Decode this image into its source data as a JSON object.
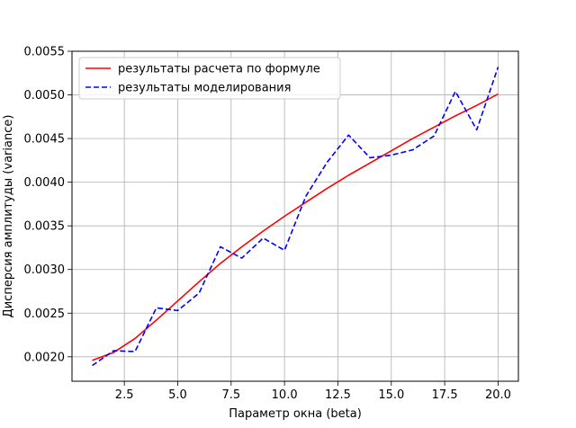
{
  "chart_data": {
    "type": "line",
    "title": "",
    "xlabel": "Параметр окна (beta)",
    "ylabel": "Дисперсия амплитуды (variance)",
    "xlim": [
      0.05,
      20.95
    ],
    "ylim": [
      0.00172,
      0.0055
    ],
    "xticks": [
      2.5,
      5.0,
      7.5,
      10.0,
      12.5,
      15.0,
      17.5,
      20.0
    ],
    "xtick_labels": [
      "2.5",
      "5.0",
      "7.5",
      "10.0",
      "12.5",
      "15.0",
      "17.5",
      "20.0"
    ],
    "yticks": [
      0.002,
      0.0025,
      0.003,
      0.0035,
      0.004,
      0.0045,
      0.005,
      0.0055
    ],
    "ytick_labels": [
      "0.0020",
      "0.0025",
      "0.0030",
      "0.0035",
      "0.0040",
      "0.0045",
      "0.0050",
      "0.0055"
    ],
    "grid": true,
    "legend_position": "top-left",
    "x": [
      1,
      2,
      3,
      4,
      5,
      6,
      7,
      8,
      9,
      10,
      11,
      12,
      13,
      14,
      15,
      16,
      17,
      18,
      19,
      20
    ],
    "series": [
      {
        "name": "результаты расчета по формуле",
        "color": "#ff0000",
        "style": "solid",
        "values": [
          0.00196,
          0.00205,
          0.00221,
          0.00242,
          0.00264,
          0.00286,
          0.00307,
          0.00326,
          0.00344,
          0.00361,
          0.00377,
          0.00393,
          0.00408,
          0.00422,
          0.00436,
          0.0045,
          0.00463,
          0.00476,
          0.00488,
          0.00501
        ]
      },
      {
        "name": "результаты моделирования",
        "color": "#0000ff",
        "style": "dashed",
        "values": [
          0.0019,
          0.00207,
          0.00206,
          0.00256,
          0.00253,
          0.00273,
          0.00326,
          0.00313,
          0.00336,
          0.00322,
          0.00384,
          0.00423,
          0.00454,
          0.00428,
          0.00431,
          0.00437,
          0.00453,
          0.00504,
          0.0046,
          0.00532
        ]
      }
    ]
  }
}
